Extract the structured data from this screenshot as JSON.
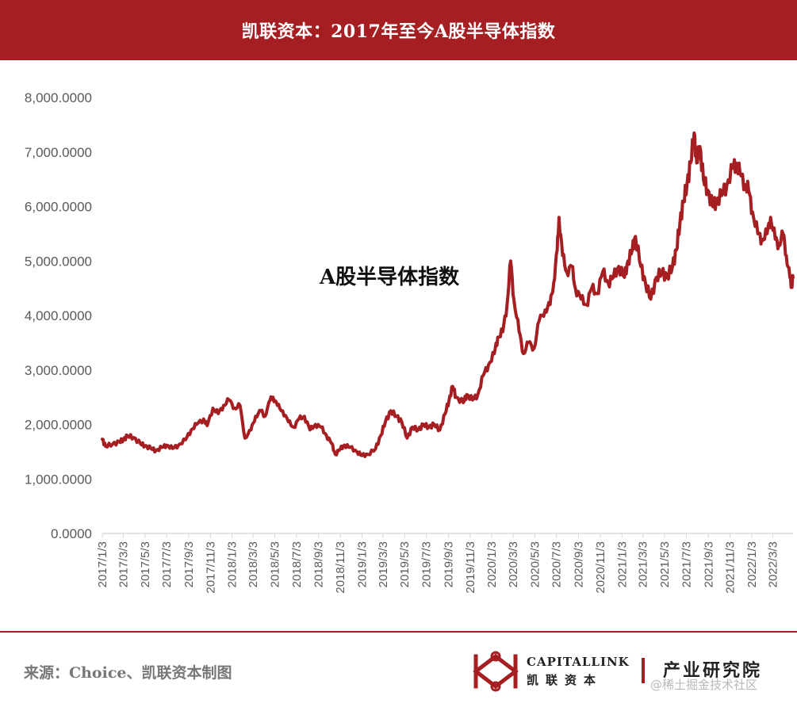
{
  "header": {
    "title": "凯联资本：2017年至今A股半导体指数"
  },
  "footer": {
    "source": "来源：Choice、凯联资本制图",
    "brand_en": "CAPITALLINK",
    "brand_cn": "凯联资本",
    "institute": "产业研究院",
    "watermark": "@稀土掘金技术社区"
  },
  "colors": {
    "brand": "#a51e22",
    "line": "#a51e22",
    "axis": "#d9d9d9",
    "tick_text": "#595959"
  },
  "chart_data": {
    "type": "line",
    "title": "",
    "annotation": "A股半导体指数",
    "xlabel": "",
    "ylabel": "",
    "ylim": [
      0,
      8000
    ],
    "grid": false,
    "legend": "none",
    "yticks": [
      0,
      1000,
      2000,
      3000,
      4000,
      5000,
      6000,
      7000,
      8000
    ],
    "ytick_labels": [
      "0.0000",
      "1,000.0000",
      "2,000.0000",
      "3,000.0000",
      "4,000.0000",
      "5,000.0000",
      "6,000.0000",
      "7,000.0000",
      "8,000.0000"
    ],
    "xticks": [
      "2017/1/3",
      "2017/3/3",
      "2017/5/3",
      "2017/7/3",
      "2017/9/3",
      "2017/11/3",
      "2018/1/3",
      "2018/3/3",
      "2018/5/3",
      "2018/7/3",
      "2018/9/3",
      "2018/11/3",
      "2019/1/3",
      "2019/3/3",
      "2019/5/3",
      "2019/7/3",
      "2019/9/3",
      "2019/11/3",
      "2020/1/3",
      "2020/3/3",
      "2020/5/3",
      "2020/7/3",
      "2020/9/3",
      "2020/11/3",
      "2021/1/3",
      "2021/3/3",
      "2021/5/3",
      "2021/7/3",
      "2021/9/3",
      "2021/11/3",
      "2022/1/3",
      "2022/3/3"
    ],
    "x_range": [
      "2017/1/3",
      "2022/4/29"
    ],
    "series": [
      {
        "name": "A股半导体指数",
        "points": [
          [
            "2017/1/3",
            1730
          ],
          [
            "2017/1/12",
            1600
          ],
          [
            "2017/2/1",
            1640
          ],
          [
            "2017/2/20",
            1680
          ],
          [
            "2017/3/3",
            1720
          ],
          [
            "2017/3/15",
            1790
          ],
          [
            "2017/4/1",
            1760
          ],
          [
            "2017/4/20",
            1650
          ],
          [
            "2017/5/3",
            1610
          ],
          [
            "2017/5/20",
            1560
          ],
          [
            "2017/6/3",
            1520
          ],
          [
            "2017/6/20",
            1580
          ],
          [
            "2017/7/3",
            1620
          ],
          [
            "2017/7/20",
            1560
          ],
          [
            "2017/8/5",
            1620
          ],
          [
            "2017/8/25",
            1720
          ],
          [
            "2017/9/10",
            1900
          ],
          [
            "2017/9/25",
            2000
          ],
          [
            "2017/10/15",
            2100
          ],
          [
            "2017/10/25",
            1980
          ],
          [
            "2017/11/10",
            2300
          ],
          [
            "2017/11/25",
            2200
          ],
          [
            "2017/12/10",
            2350
          ],
          [
            "2017/12/25",
            2450
          ],
          [
            "2018/1/10",
            2300
          ],
          [
            "2018/1/25",
            2350
          ],
          [
            "2018/2/8",
            1750
          ],
          [
            "2018/2/25",
            1900
          ],
          [
            "2018/3/10",
            2150
          ],
          [
            "2018/3/25",
            2250
          ],
          [
            "2018/4/5",
            2150
          ],
          [
            "2018/4/20",
            2450
          ],
          [
            "2018/4/28",
            2500
          ],
          [
            "2018/5/10",
            2350
          ],
          [
            "2018/5/25",
            2250
          ],
          [
            "2018/6/10",
            2050
          ],
          [
            "2018/6/25",
            1950
          ],
          [
            "2018/7/10",
            2100
          ],
          [
            "2018/7/25",
            2150
          ],
          [
            "2018/8/10",
            1900
          ],
          [
            "2018/8/25",
            2000
          ],
          [
            "2018/9/10",
            1950
          ],
          [
            "2018/9/25",
            1800
          ],
          [
            "2018/10/10",
            1650
          ],
          [
            "2018/10/20",
            1450
          ],
          [
            "2018/11/3",
            1550
          ],
          [
            "2018/11/15",
            1620
          ],
          [
            "2018/12/1",
            1580
          ],
          [
            "2018/12/20",
            1500
          ],
          [
            "2019/1/3",
            1430
          ],
          [
            "2019/1/20",
            1450
          ],
          [
            "2019/2/10",
            1550
          ],
          [
            "2019/2/25",
            1800
          ],
          [
            "2019/3/10",
            2050
          ],
          [
            "2019/3/25",
            2250
          ],
          [
            "2019/4/10",
            2150
          ],
          [
            "2019/4/25",
            2050
          ],
          [
            "2019/5/10",
            1750
          ],
          [
            "2019/5/25",
            1950
          ],
          [
            "2019/6/10",
            1900
          ],
          [
            "2019/6/25",
            2000
          ],
          [
            "2019/7/10",
            1950
          ],
          [
            "2019/7/25",
            2000
          ],
          [
            "2019/8/10",
            1900
          ],
          [
            "2019/8/25",
            2200
          ],
          [
            "2019/9/5",
            2450
          ],
          [
            "2019/9/15",
            2700
          ],
          [
            "2019/9/25",
            2500
          ],
          [
            "2019/10/15",
            2400
          ],
          [
            "2019/10/25",
            2550
          ],
          [
            "2019/11/10",
            2450
          ],
          [
            "2019/11/25",
            2550
          ],
          [
            "2019/12/10",
            2900
          ],
          [
            "2019/12/25",
            3100
          ],
          [
            "2020/1/10",
            3300
          ],
          [
            "2020/1/20",
            3600
          ],
          [
            "2020/2/3",
            3700
          ],
          [
            "2020/2/15",
            4200
          ],
          [
            "2020/2/25",
            5000
          ],
          [
            "2020/3/5",
            4300
          ],
          [
            "2020/3/20",
            3700
          ],
          [
            "2020/4/1",
            3300
          ],
          [
            "2020/4/15",
            3500
          ],
          [
            "2020/5/1",
            3400
          ],
          [
            "2020/5/15",
            3900
          ],
          [
            "2020/6/1",
            4100
          ],
          [
            "2020/6/15",
            4200
          ],
          [
            "2020/6/25",
            4600
          ],
          [
            "2020/7/5",
            5200
          ],
          [
            "2020/7/10",
            5800
          ],
          [
            "2020/7/20",
            5100
          ],
          [
            "2020/8/1",
            4800
          ],
          [
            "2020/8/15",
            4900
          ],
          [
            "2020/8/25",
            4500
          ],
          [
            "2020/9/10",
            4300
          ],
          [
            "2020/9/25",
            4200
          ],
          [
            "2020/10/10",
            4500
          ],
          [
            "2020/10/25",
            4400
          ],
          [
            "2020/11/10",
            4800
          ],
          [
            "2020/11/25",
            4600
          ],
          [
            "2020/12/10",
            4700
          ],
          [
            "2020/12/25",
            4900
          ],
          [
            "2021/1/10",
            4700
          ],
          [
            "2021/1/20",
            5000
          ],
          [
            "2021/2/1",
            5200
          ],
          [
            "2021/2/10",
            5450
          ],
          [
            "2021/2/25",
            4900
          ],
          [
            "2021/3/10",
            4600
          ],
          [
            "2021/3/25",
            4300
          ],
          [
            "2021/4/10",
            4700
          ],
          [
            "2021/4/25",
            4800
          ],
          [
            "2021/5/10",
            4700
          ],
          [
            "2021/5/25",
            4900
          ],
          [
            "2021/6/5",
            5200
          ],
          [
            "2021/6/15",
            5700
          ],
          [
            "2021/6/25",
            6100
          ],
          [
            "2021/7/5",
            6400
          ],
          [
            "2021/7/15",
            6800
          ],
          [
            "2021/7/25",
            7350
          ],
          [
            "2021/8/1",
            6800
          ],
          [
            "2021/8/10",
            7100
          ],
          [
            "2021/8/20",
            6500
          ],
          [
            "2021/9/1",
            6300
          ],
          [
            "2021/9/15",
            6000
          ],
          [
            "2021/9/25",
            6100
          ],
          [
            "2021/10/10",
            6200
          ],
          [
            "2021/10/25",
            6400
          ],
          [
            "2021/11/10",
            6700
          ],
          [
            "2021/11/20",
            6800
          ],
          [
            "2021/12/1",
            6600
          ],
          [
            "2021/12/15",
            6400
          ],
          [
            "2021/12/25",
            6300
          ],
          [
            "2022/1/5",
            5900
          ],
          [
            "2022/1/20",
            5500
          ],
          [
            "2022/2/1",
            5400
          ],
          [
            "2022/2/15",
            5500
          ],
          [
            "2022/2/25",
            5800
          ],
          [
            "2022/3/10",
            5400
          ],
          [
            "2022/3/20",
            5300
          ],
          [
            "2022/4/1",
            5500
          ],
          [
            "2022/4/10",
            5100
          ],
          [
            "2022/4/20",
            4700
          ],
          [
            "2022/4/25",
            4550
          ],
          [
            "2022/4/29",
            4700
          ]
        ]
      }
    ]
  }
}
